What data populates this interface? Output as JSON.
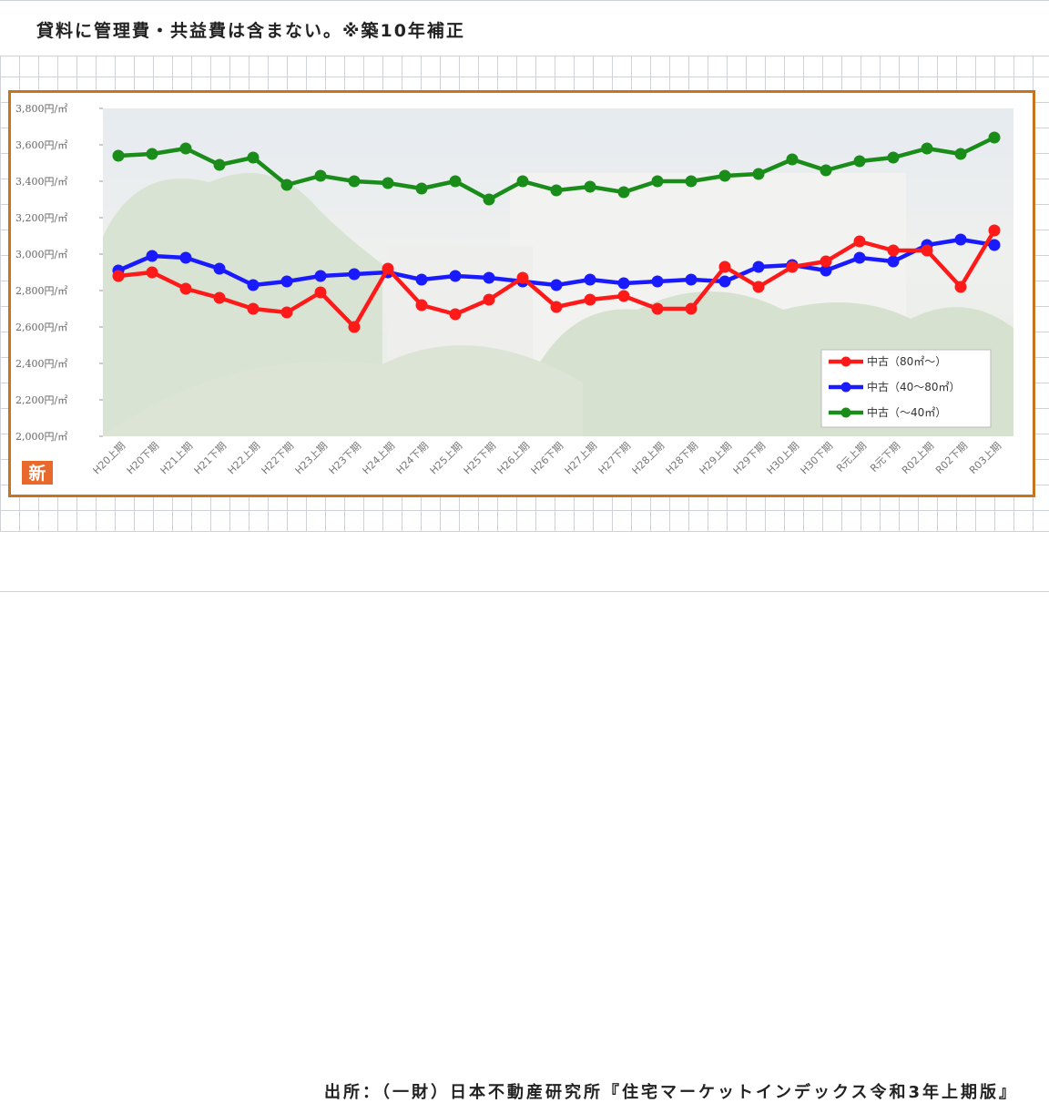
{
  "header": {
    "note": "貸料に管理費・共益費は含まない。※築10年補正"
  },
  "footer": {
    "source": "出所：（一財）日本不動産研究所『住宅マーケットインデックス令和3年上期版』"
  },
  "badge": {
    "label": "新"
  },
  "colors": {
    "frame": "#c8731f",
    "series_80": "#ff1a1a",
    "series_40_80": "#1a1aff",
    "series_40": "#1a8c1a"
  },
  "chart_data": {
    "type": "line",
    "title": "",
    "xlabel": "",
    "ylabel": "",
    "ylim": [
      2000,
      3800
    ],
    "y_ticks": [
      2000,
      2200,
      2400,
      2600,
      2800,
      3000,
      3200,
      3400,
      3600,
      3800
    ],
    "y_tick_labels": [
      "2,000円/㎡",
      "2,200円/㎡",
      "2,400円/㎡",
      "2,600円/㎡",
      "2,800円/㎡",
      "3,000円/㎡",
      "3,200円/㎡",
      "3,400円/㎡",
      "3,600円/㎡",
      "3,800円/㎡"
    ],
    "categories": [
      "H20上期",
      "H20下期",
      "H21上期",
      "H21下期",
      "H22上期",
      "H22下期",
      "H23上期",
      "H23下期",
      "H24上期",
      "H24下期",
      "H25上期",
      "H25下期",
      "H26上期",
      "H26下期",
      "H27上期",
      "H27下期",
      "H28上期",
      "H28下期",
      "H29上期",
      "H29下期",
      "H30上期",
      "H30下期",
      "R元上期",
      "R元下期",
      "R02上期",
      "R02下期",
      "R03上期"
    ],
    "grid": false,
    "legend": "bottom-right",
    "series": [
      {
        "name": "中古（80㎡～）",
        "color": "#ff1a1a",
        "values": [
          2880,
          2900,
          2810,
          2760,
          2700,
          2680,
          2790,
          2600,
          2920,
          2720,
          2670,
          2750,
          2870,
          2710,
          2750,
          2770,
          2700,
          2700,
          2930,
          2820,
          2930,
          2960,
          3070,
          3020,
          3020,
          2820,
          3130
        ]
      },
      {
        "name": "中古（40～80㎡）",
        "color": "#1a1aff",
        "values": [
          2910,
          2990,
          2980,
          2920,
          2830,
          2850,
          2880,
          2890,
          2900,
          2860,
          2880,
          2870,
          2850,
          2830,
          2860,
          2840,
          2850,
          2860,
          2850,
          2930,
          2940,
          2910,
          2980,
          2960,
          3050,
          3080,
          3050
        ]
      },
      {
        "name": "中古（～40㎡）",
        "color": "#1a8c1a",
        "values": [
          3540,
          3550,
          3580,
          3490,
          3530,
          3380,
          3430,
          3400,
          3390,
          3360,
          3400,
          3300,
          3400,
          3350,
          3370,
          3340,
          3400,
          3400,
          3430,
          3440,
          3520,
          3460,
          3510,
          3530,
          3580,
          3550,
          3640
        ]
      }
    ]
  }
}
